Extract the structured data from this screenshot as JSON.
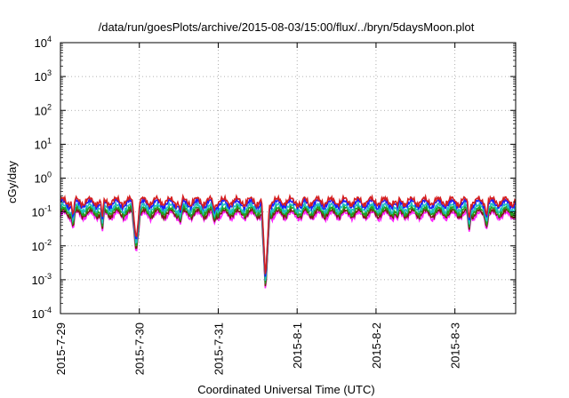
{
  "chart_data": {
    "type": "line",
    "title": "/data/run/goesPlots/archive/2015-08-03/15:00/flux/../bryn/5daysMoon.plot",
    "xlabel": "Coordinated Universal Time (UTC)",
    "ylabel": "cGy/day",
    "yscale": "log",
    "ylim": [
      0.0001,
      10000
    ],
    "xlim": [
      0,
      5.77
    ],
    "grid": true,
    "x_ticks": [
      {
        "label": "2015-7-29",
        "day": 0
      },
      {
        "label": "2015-7-30",
        "day": 1
      },
      {
        "label": "2015-7-31",
        "day": 2
      },
      {
        "label": "2015-8-1",
        "day": 3
      },
      {
        "label": "2015-8-2",
        "day": 4
      },
      {
        "label": "2015-8-3",
        "day": 5
      }
    ],
    "y_ticks": [
      {
        "base": "10",
        "exp": "-4",
        "value": 0.0001
      },
      {
        "base": "10",
        "exp": "-3",
        "value": 0.001
      },
      {
        "base": "10",
        "exp": "-2",
        "value": 0.01
      },
      {
        "base": "10",
        "exp": "-1",
        "value": 0.1
      },
      {
        "base": "10",
        "exp": "0",
        "value": 1
      },
      {
        "base": "10",
        "exp": "1",
        "value": 10
      },
      {
        "base": "10",
        "exp": "2",
        "value": 100
      },
      {
        "base": "10",
        "exp": "3",
        "value": 1000
      },
      {
        "base": "10",
        "exp": "4",
        "value": 10000
      }
    ],
    "series": [
      {
        "color": "#d62020",
        "level": 0.25
      },
      {
        "color": "#1a1aff",
        "level": 0.21
      },
      {
        "color": "#20c0c0",
        "level": 0.16
      },
      {
        "color": "#20a020",
        "level": 0.13
      },
      {
        "color": "#7a2010",
        "level": 0.11
      },
      {
        "color": "#ff20ff",
        "level": 0.095
      }
    ],
    "dips": [
      {
        "day": 0.16,
        "value": 0.03
      },
      {
        "day": 0.53,
        "value": 0.025
      },
      {
        "day": 0.96,
        "value": 0.006
      },
      {
        "day": 1.52,
        "value": 0.045
      },
      {
        "day": 1.95,
        "value": 0.045
      },
      {
        "day": 2.6,
        "value": 0.0004
      },
      {
        "day": 3.05,
        "value": 0.06
      },
      {
        "day": 4.27,
        "value": 0.06
      },
      {
        "day": 5.18,
        "value": 0.025
      },
      {
        "day": 5.4,
        "value": 0.03
      }
    ]
  }
}
